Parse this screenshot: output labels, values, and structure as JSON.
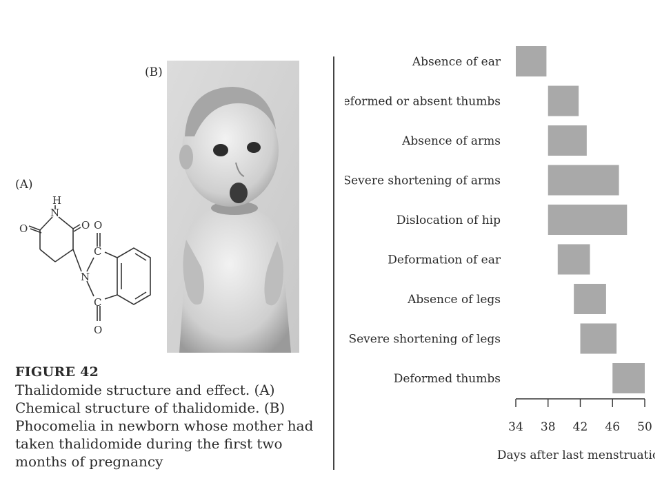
{
  "panel_a_label": "(A)",
  "panel_b_label": "(B)",
  "molecule_atoms": {
    "h": "H",
    "n_top": "N",
    "o_left": "O",
    "o_right": "O",
    "o_top": "O",
    "c_top": "C",
    "n_mid": "N",
    "c_bottom": "C",
    "o_bottom": "O"
  },
  "caption": {
    "title": "FIGURE 42",
    "text": "Thalidomide structure and effect. (A) Chemical structure of thalidomide. (B) Phocomelia in newborn whose mother had taken thalidomide during the first two months of pregnancy"
  },
  "chart_data": {
    "type": "bar",
    "orientation": "horizontal-range",
    "xlabel": "Days after last menstruation",
    "xlim": [
      34,
      50
    ],
    "x_ticks": [
      34,
      38,
      42,
      46,
      50
    ],
    "bar_color": "#a9a9a9",
    "categories": [
      "Absence of ear",
      "Deformed or absent thumbs",
      "Absence of arms",
      "Severe shortening of arms",
      "Dislocation of hip",
      "Deformation of ear",
      "Absence of legs",
      "Severe shortening of legs",
      "Deformed thumbs"
    ],
    "ranges": [
      [
        34,
        37.8
      ],
      [
        38,
        41.8
      ],
      [
        38,
        42.8
      ],
      [
        38,
        46.8
      ],
      [
        38,
        47.8
      ],
      [
        39.2,
        43.2
      ],
      [
        41.2,
        45.2
      ],
      [
        42,
        46.5
      ],
      [
        46,
        50
      ]
    ]
  }
}
